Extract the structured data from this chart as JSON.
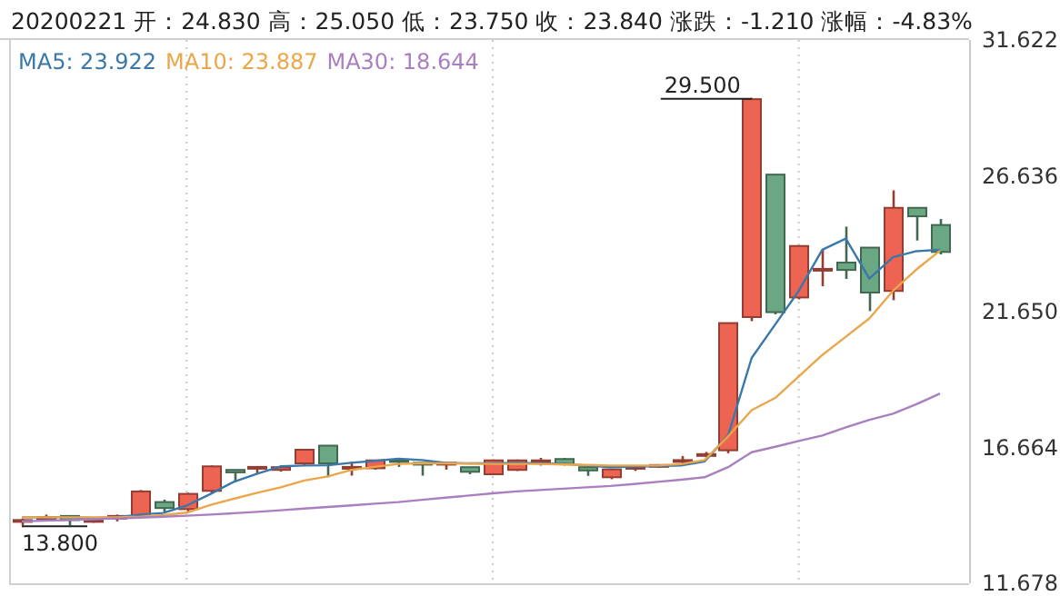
{
  "chart_data": {
    "type": "candlestick",
    "title": "20200221 开：24.830 高：25.050 低：23.750 收：23.840 涨跌：-1.210 涨幅：-4.83%",
    "categories": [
      null,
      null,
      null,
      null,
      null,
      null,
      null,
      null,
      null,
      null,
      null,
      null,
      null,
      null,
      null,
      null,
      null,
      null,
      null,
      null,
      null,
      null,
      null,
      null,
      null,
      null,
      null,
      null,
      null,
      null,
      null,
      null,
      null,
      null,
      null,
      null,
      null,
      null,
      null,
      null
    ],
    "ohlc": [
      [
        13.95,
        14.05,
        13.8,
        14.0
      ],
      [
        14.05,
        14.2,
        13.95,
        14.1
      ],
      [
        14.15,
        14.15,
        13.8,
        14.0
      ],
      [
        13.98,
        14.05,
        13.9,
        14.0
      ],
      [
        14.05,
        14.2,
        13.95,
        14.15
      ],
      [
        14.15,
        15.1,
        14.1,
        15.05
      ],
      [
        14.66,
        14.75,
        14.3,
        14.44
      ],
      [
        14.4,
        15.0,
        14.3,
        14.96
      ],
      [
        15.07,
        16.0,
        15.0,
        15.97
      ],
      [
        15.84,
        15.84,
        15.4,
        15.75
      ],
      [
        15.92,
        15.95,
        15.7,
        15.95
      ],
      [
        15.84,
        16.0,
        15.78,
        15.94
      ],
      [
        16.08,
        16.6,
        16.0,
        16.58
      ],
      [
        16.73,
        16.75,
        15.57,
        16.08
      ],
      [
        15.92,
        16.15,
        15.63,
        15.95
      ],
      [
        15.9,
        16.2,
        15.85,
        16.19
      ],
      [
        16.2,
        16.25,
        15.95,
        16.17
      ],
      [
        16.1,
        16.1,
        15.63,
        16.08
      ],
      [
        16.08,
        16.12,
        15.85,
        16.1
      ],
      [
        15.94,
        15.94,
        15.68,
        15.77
      ],
      [
        15.68,
        16.22,
        15.65,
        16.19
      ],
      [
        15.84,
        16.22,
        15.8,
        16.19
      ],
      [
        16.17,
        16.28,
        16.0,
        16.19
      ],
      [
        16.24,
        16.28,
        16.0,
        16.06
      ],
      [
        15.94,
        15.95,
        15.62,
        15.82
      ],
      [
        15.57,
        15.88,
        15.5,
        15.86
      ],
      [
        15.9,
        15.98,
        15.8,
        15.95
      ],
      [
        15.98,
        16.05,
        15.92,
        16.02
      ],
      [
        16.15,
        16.35,
        16.0,
        16.2
      ],
      [
        16.36,
        16.5,
        16.3,
        16.42
      ],
      [
        16.56,
        21.25,
        16.45,
        21.23
      ],
      [
        21.45,
        29.5,
        21.3,
        29.45
      ],
      [
        26.68,
        26.68,
        21.55,
        21.63
      ],
      [
        22.17,
        24.06,
        22.1,
        24.06
      ],
      [
        23.18,
        23.92,
        22.58,
        23.22
      ],
      [
        23.45,
        24.77,
        22.85,
        23.18
      ],
      [
        24.0,
        24.0,
        21.67,
        22.35
      ],
      [
        22.41,
        26.1,
        22.07,
        25.46
      ],
      [
        25.46,
        25.46,
        24.26,
        25.15
      ],
      [
        24.83,
        25.05,
        23.75,
        23.84
      ]
    ],
    "colors": [
      "#ee6452",
      "#ee6452",
      "#6aa883",
      "#ee6452",
      "#ee6452",
      "#ee6452",
      "#6aa883",
      "#ee6452",
      "#ee6452",
      "#6aa883",
      "#ee6452",
      "#ee6452",
      "#ee6452",
      "#6aa883",
      "#ee6452",
      "#ee6452",
      "#6aa883",
      "#6aa883",
      "#ee6452",
      "#6aa883",
      "#ee6452",
      "#ee6452",
      "#ee6452",
      "#6aa883",
      "#6aa883",
      "#ee6452",
      "#ee6452",
      "#ee6452",
      "#ee6452",
      "#ee6452",
      "#ee6452",
      "#ee6452",
      "#6aa883",
      "#ee6452",
      "#ee6452",
      "#6aa883",
      "#6aa883",
      "#ee6452",
      "#6aa883",
      "#6aa883"
    ],
    "series": [
      {
        "name": "MA5: 23.922",
        "type": "line",
        "color": "#3a78aa",
        "values": [
          14.1,
          14.1,
          14.1,
          14.08,
          14.1,
          14.2,
          14.26,
          14.53,
          14.95,
          15.4,
          15.7,
          15.97,
          16.0,
          16.01,
          16.1,
          16.17,
          16.25,
          16.2,
          16.1,
          16.08,
          16.08,
          16.1,
          16.08,
          16.06,
          16.0,
          15.94,
          15.96,
          15.98,
          16.0,
          16.15,
          17.1,
          19.95,
          21.18,
          22.41,
          23.92,
          24.33,
          22.86,
          23.65,
          23.87,
          23.922
        ]
      },
      {
        "name": "MA10: 23.887",
        "type": "line",
        "color": "#eba64a",
        "values": [
          14.1,
          14.1,
          14.1,
          14.1,
          14.1,
          14.12,
          14.18,
          14.27,
          14.55,
          14.78,
          15.0,
          15.2,
          15.45,
          15.6,
          15.84,
          15.95,
          16.06,
          16.08,
          16.08,
          16.07,
          16.06,
          16.06,
          16.06,
          16.04,
          16.02,
          16.0,
          16.0,
          16.0,
          16.05,
          16.2,
          17.07,
          18.03,
          18.48,
          19.27,
          20.06,
          20.73,
          21.4,
          22.41,
          23.2,
          23.887
        ]
      },
      {
        "name": "MA30: 18.644",
        "type": "line",
        "color": "#a97fc0",
        "values": [
          13.95,
          13.98,
          14.0,
          14.03,
          14.06,
          14.09,
          14.12,
          14.16,
          14.2,
          14.25,
          14.3,
          14.36,
          14.42,
          14.48,
          14.54,
          14.6,
          14.66,
          14.74,
          14.82,
          14.9,
          14.98,
          15.05,
          15.1,
          15.15,
          15.2,
          15.25,
          15.32,
          15.4,
          15.48,
          15.57,
          15.94,
          16.49,
          16.69,
          16.9,
          17.1,
          17.4,
          17.68,
          17.9,
          18.25,
          18.644
        ]
      }
    ],
    "annotations": [
      "29.500",
      "13.800"
    ],
    "ylim": [
      11.678,
      31.622
    ],
    "yticks": [
      {
        "value": 11.678,
        "label": "11.678"
      },
      {
        "value": 16.664,
        "label": "16.664"
      },
      {
        "value": 21.65,
        "label": "21.650"
      },
      {
        "value": 26.636,
        "label": "26.636"
      },
      {
        "value": 31.622,
        "label": "31.622"
      }
    ],
    "grid": "x",
    "legend": "top left"
  }
}
